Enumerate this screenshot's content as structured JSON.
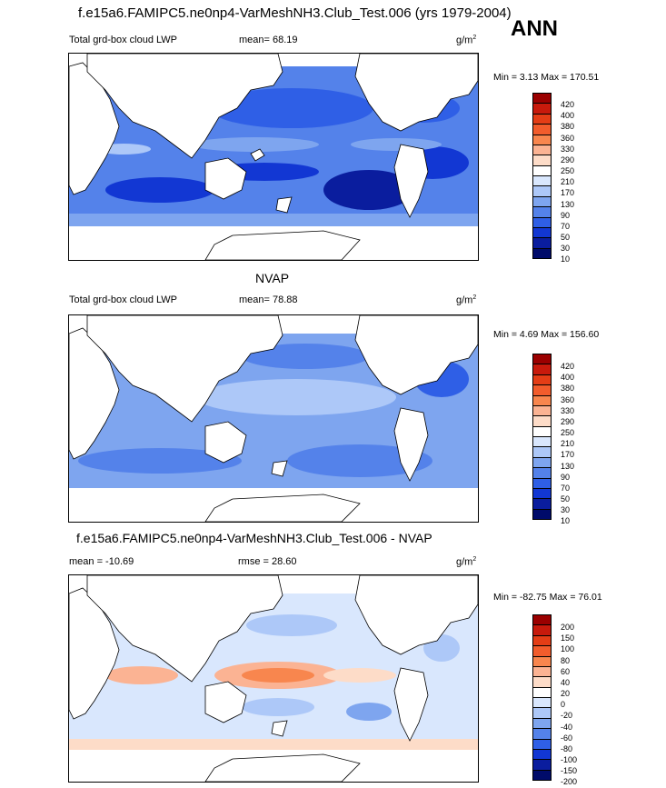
{
  "header": {
    "title": "f.e15a6.FAMIPC5.ne0np4-VarMeshNH3.Club_Test.006 (yrs 1979-2004)",
    "season": "ANN"
  },
  "panel1": {
    "variable": "Total grd-box cloud LWP",
    "mean_label": "mean=  68.19",
    "units": "g/m",
    "units_exp": "2",
    "minmax": "Min =   3.13 Max = 170.51",
    "levels": [
      "420",
      "400",
      "380",
      "360",
      "330",
      "290",
      "250",
      "210",
      "170",
      "130",
      "90",
      "70",
      "50",
      "30",
      "10"
    ],
    "colors": [
      "#9b0000",
      "#c81a0c",
      "#e43d16",
      "#f25c2c",
      "#f8864e",
      "#fbb393",
      "#fddcc8",
      "#ffffff",
      "#d9e7fd",
      "#adc8f8",
      "#7ea5ef",
      "#5482ea",
      "#2f5fe6",
      "#1237d3",
      "#0a1d9e",
      "#000b6a"
    ]
  },
  "panel2": {
    "title": "NVAP",
    "variable": "Total grd-box cloud LWP",
    "mean_label": "mean=  78.88",
    "units": "g/m",
    "units_exp": "2",
    "minmax": "Min =   4.69 Max = 156.60",
    "levels": [
      "420",
      "400",
      "380",
      "360",
      "330",
      "290",
      "250",
      "210",
      "170",
      "130",
      "90",
      "70",
      "50",
      "30",
      "10"
    ],
    "colors": [
      "#9b0000",
      "#c81a0c",
      "#e43d16",
      "#f25c2c",
      "#f8864e",
      "#fbb393",
      "#fddcc8",
      "#ffffff",
      "#d9e7fd",
      "#adc8f8",
      "#7ea5ef",
      "#5482ea",
      "#2f5fe6",
      "#1237d3",
      "#0a1d9e",
      "#000b6a"
    ]
  },
  "panel3": {
    "title": "f.e15a6.FAMIPC5.ne0np4-VarMeshNH3.Club_Test.006 - NVAP",
    "mean_label": "mean = -10.69",
    "rmse_label": "rmse =  28.60",
    "units": "g/m",
    "units_exp": "2",
    "minmax": "Min = -82.75 Max =  76.01",
    "levels": [
      "200",
      "150",
      "100",
      "80",
      "60",
      "40",
      "20",
      "0",
      "-20",
      "-40",
      "-60",
      "-80",
      "-100",
      "-150",
      "-200"
    ],
    "colors": [
      "#9b0000",
      "#c81a0c",
      "#e43d16",
      "#f25c2c",
      "#f8864e",
      "#fbb393",
      "#fddcc8",
      "#ffffff",
      "#d9e7fd",
      "#adc8f8",
      "#7ea5ef",
      "#5482ea",
      "#2f5fe6",
      "#1237d3",
      "#0a1d9e",
      "#000b6a"
    ]
  }
}
